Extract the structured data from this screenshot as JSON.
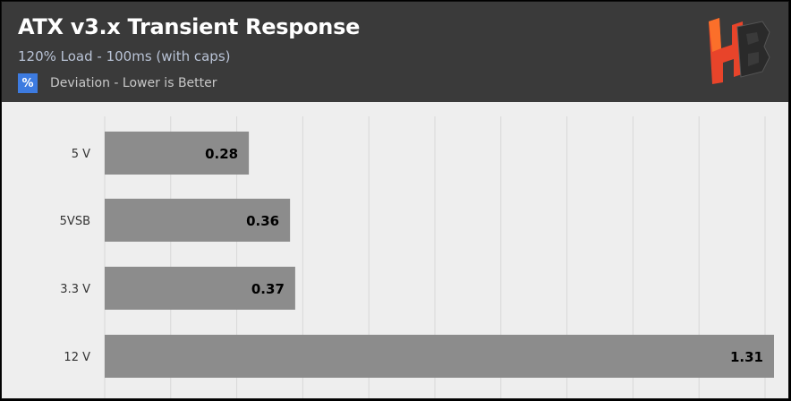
{
  "header": {
    "title": "ATX v3.x Transient Response",
    "subtitle": "120% Load - 100ms (with caps)",
    "legend_symbol": "%",
    "legend_label": "Deviation - Lower is Better"
  },
  "logo": {
    "icon": "hb-logo-icon",
    "colors": [
      "#e8442a",
      "#ff7a2a",
      "#2a2a2a"
    ]
  },
  "colors": {
    "header_bg": "#3a3a3a",
    "plot_bg": "#eeeeee",
    "bar": "#8c8c8c",
    "legend": "#3d7be0",
    "gridline": "#d8d8d8"
  },
  "chart_data": {
    "type": "bar",
    "orientation": "horizontal",
    "categories": [
      "5 V",
      "5VSB",
      "3.3 V",
      "12 V"
    ],
    "values": [
      0.28,
      0.36,
      0.37,
      1.31
    ],
    "value_labels": [
      "0.28",
      "0.36",
      "0.37",
      "1.31"
    ],
    "xlim": [
      0,
      1.3
    ],
    "grid": true,
    "legend_placement": "top-left"
  }
}
